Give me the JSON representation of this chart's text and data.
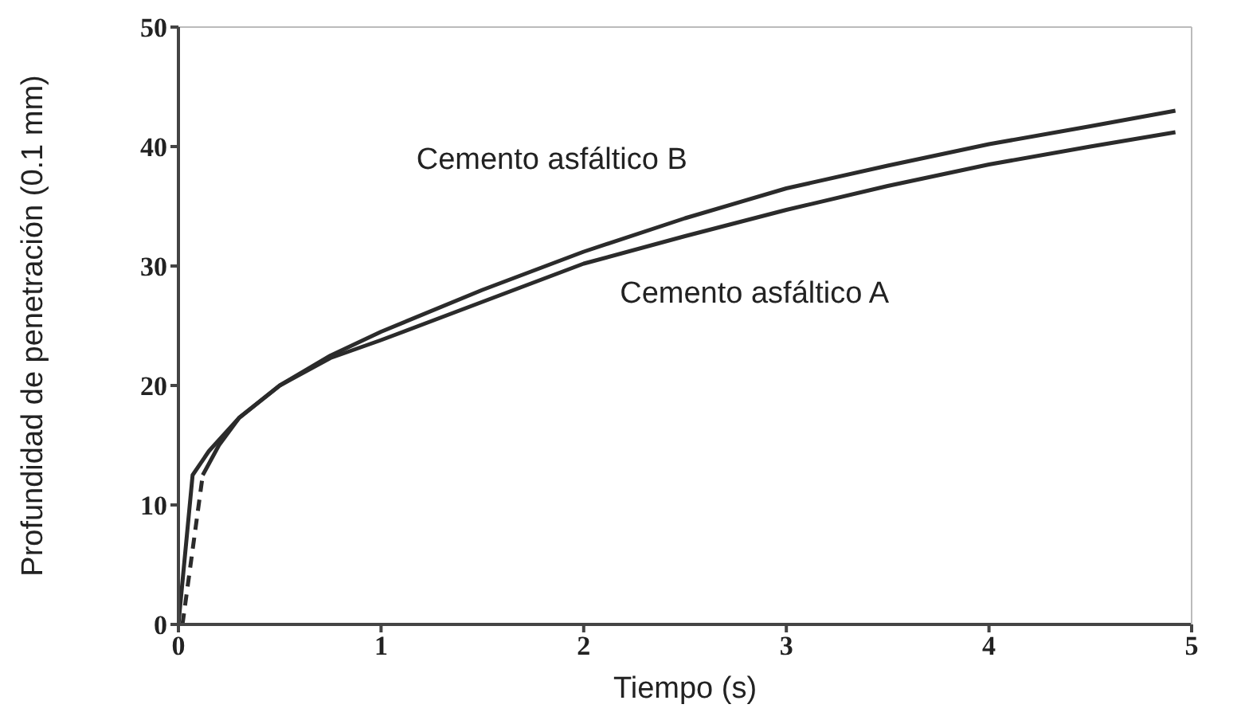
{
  "chart_data": {
    "type": "line",
    "xlabel": "Tiempo (s)",
    "ylabel": "Profundidad de penetración (0.1 mm)",
    "xlim": [
      0,
      5
    ],
    "xticks": [
      0,
      1,
      2,
      3,
      4,
      5
    ],
    "ylim": [
      0,
      50
    ],
    "yticks": [
      0,
      10,
      20,
      30,
      40,
      50
    ],
    "grid": false,
    "legend": false,
    "marker": "none",
    "series": [
      {
        "name": "Cemento asfáltico B",
        "color": "#2b2b2b",
        "line_style": "solid",
        "x": [
          0,
          0.07,
          0.15,
          0.3,
          0.5,
          0.75,
          1,
          1.5,
          2,
          2.5,
          3,
          3.5,
          4,
          4.5,
          4.92
        ],
        "values": [
          0,
          12.5,
          14.5,
          17.3,
          20,
          22.5,
          24.5,
          28,
          31.2,
          34,
          36.5,
          38.4,
          40.2,
          41.7,
          43
        ]
      },
      {
        "name": "Cemento asfáltico A",
        "color": "#2b2b2b",
        "line_style": "solid",
        "x": [
          0.12,
          0.2,
          0.3,
          0.5,
          0.75,
          1,
          1.5,
          2,
          2.5,
          3,
          3.5,
          4,
          4.5,
          4.92
        ],
        "values": [
          12.5,
          15,
          17.3,
          20,
          22.3,
          23.8,
          27,
          30.2,
          32.5,
          34.7,
          36.7,
          38.5,
          40,
          41.2
        ]
      },
      {
        "color": "#2b2b2b",
        "line_style": "dashed",
        "x": [
          0.02,
          0.12
        ],
        "values": [
          0,
          12.5
        ]
      }
    ]
  }
}
